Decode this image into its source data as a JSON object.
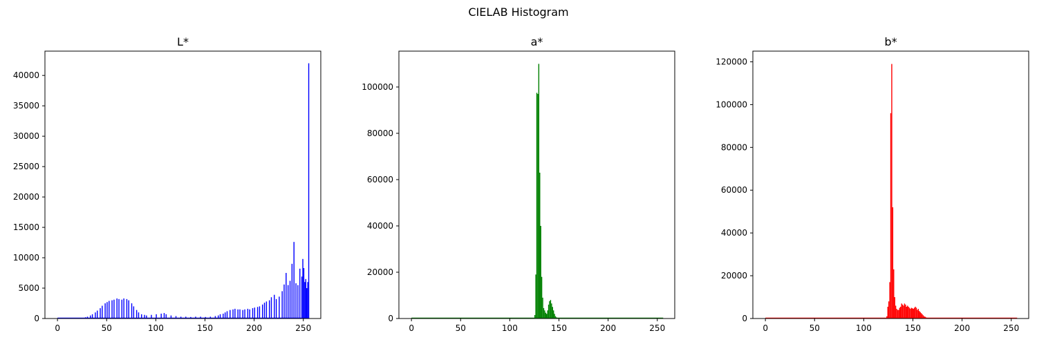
{
  "figure": {
    "title": "CIELAB Histogram"
  },
  "chart_data": [
    {
      "type": "bar",
      "title": "L*",
      "xlabel": "",
      "ylabel": "",
      "color": "#0000ff",
      "xlim": [
        -12.75,
        267.75
      ],
      "ylim": [
        0,
        44000
      ],
      "xticks": [
        0,
        50,
        100,
        150,
        200,
        250
      ],
      "yticks": [
        0,
        5000,
        10000,
        15000,
        20000,
        25000,
        30000,
        35000,
        40000
      ],
      "grid": false,
      "bins": [
        [
          0,
          0
        ],
        [
          25,
          100
        ],
        [
          28,
          200
        ],
        [
          30,
          300
        ],
        [
          33,
          500
        ],
        [
          35,
          700
        ],
        [
          38,
          1000
        ],
        [
          40,
          1300
        ],
        [
          43,
          1700
        ],
        [
          45,
          2100
        ],
        [
          48,
          2500
        ],
        [
          50,
          2700
        ],
        [
          52,
          2900
        ],
        [
          55,
          3000
        ],
        [
          57,
          3100
        ],
        [
          60,
          3300
        ],
        [
          62,
          3200
        ],
        [
          65,
          3100
        ],
        [
          67,
          3300
        ],
        [
          70,
          3200
        ],
        [
          72,
          3000
        ],
        [
          75,
          2500
        ],
        [
          77,
          2000
        ],
        [
          80,
          1400
        ],
        [
          82,
          1000
        ],
        [
          85,
          700
        ],
        [
          88,
          600
        ],
        [
          90,
          500
        ],
        [
          95,
          600
        ],
        [
          100,
          700
        ],
        [
          105,
          800
        ],
        [
          108,
          900
        ],
        [
          110,
          700
        ],
        [
          115,
          500
        ],
        [
          120,
          400
        ],
        [
          125,
          300
        ],
        [
          130,
          300
        ],
        [
          135,
          250
        ],
        [
          140,
          300
        ],
        [
          145,
          300
        ],
        [
          150,
          250
        ],
        [
          155,
          300
        ],
        [
          160,
          400
        ],
        [
          163,
          500
        ],
        [
          165,
          700
        ],
        [
          168,
          800
        ],
        [
          170,
          1000
        ],
        [
          172,
          1200
        ],
        [
          175,
          1400
        ],
        [
          178,
          1500
        ],
        [
          180,
          1600
        ],
        [
          183,
          1500
        ],
        [
          185,
          1500
        ],
        [
          188,
          1400
        ],
        [
          190,
          1500
        ],
        [
          193,
          1600
        ],
        [
          195,
          1500
        ],
        [
          198,
          1700
        ],
        [
          200,
          1800
        ],
        [
          203,
          1900
        ],
        [
          205,
          2000
        ],
        [
          208,
          2300
        ],
        [
          210,
          2600
        ],
        [
          212,
          2800
        ],
        [
          215,
          3000
        ],
        [
          217,
          3500
        ],
        [
          220,
          3900
        ],
        [
          222,
          3200
        ],
        [
          225,
          3600
        ],
        [
          228,
          4500
        ],
        [
          230,
          5600
        ],
        [
          232,
          7500
        ],
        [
          234,
          5500
        ],
        [
          236,
          6200
        ],
        [
          238,
          9000
        ],
        [
          240,
          12600
        ],
        [
          242,
          5800
        ],
        [
          244,
          5500
        ],
        [
          246,
          8200
        ],
        [
          248,
          6900
        ],
        [
          249,
          9800
        ],
        [
          250,
          8300
        ],
        [
          251,
          6000
        ],
        [
          252,
          6500
        ],
        [
          253,
          5000
        ],
        [
          254,
          6000
        ],
        [
          255,
          42000
        ]
      ]
    },
    {
      "type": "bar",
      "title": "a*",
      "xlabel": "",
      "ylabel": "",
      "color": "#008000",
      "xlim": [
        -12.75,
        267.75
      ],
      "ylim": [
        0,
        115500
      ],
      "xticks": [
        0,
        50,
        100,
        150,
        200,
        250
      ],
      "yticks": [
        0,
        20000,
        40000,
        60000,
        80000,
        100000
      ],
      "grid": false,
      "bins": [
        [
          124,
          300
        ],
        [
          125,
          1500
        ],
        [
          126,
          19000
        ],
        [
          127,
          97500
        ],
        [
          128,
          97000
        ],
        [
          129,
          110000
        ],
        [
          130,
          63000
        ],
        [
          131,
          40000
        ],
        [
          132,
          18000
        ],
        [
          133,
          9000
        ],
        [
          134,
          4500
        ],
        [
          135,
          3500
        ],
        [
          136,
          2500
        ],
        [
          137,
          2000
        ],
        [
          138,
          3500
        ],
        [
          139,
          6000
        ],
        [
          140,
          7500
        ],
        [
          141,
          8000
        ],
        [
          142,
          6500
        ],
        [
          143,
          5000
        ],
        [
          144,
          3500
        ],
        [
          145,
          2000
        ],
        [
          146,
          1000
        ],
        [
          147,
          500
        ],
        [
          148,
          200
        ]
      ]
    },
    {
      "type": "bar",
      "title": "b*",
      "xlabel": "",
      "ylabel": "",
      "color": "#ff0000",
      "xlim": [
        -12.75,
        267.75
      ],
      "ylim": [
        0,
        125000
      ],
      "xticks": [
        0,
        50,
        100,
        150,
        200,
        250
      ],
      "yticks": [
        0,
        20000,
        40000,
        60000,
        80000,
        100000,
        120000
      ],
      "grid": false,
      "bins": [
        [
          122,
          300
        ],
        [
          123,
          1000
        ],
        [
          124,
          5500
        ],
        [
          125,
          8000
        ],
        [
          126,
          17000
        ],
        [
          127,
          96000
        ],
        [
          128,
          119000
        ],
        [
          129,
          52000
        ],
        [
          130,
          23000
        ],
        [
          131,
          10000
        ],
        [
          132,
          6000
        ],
        [
          133,
          4500
        ],
        [
          134,
          4000
        ],
        [
          135,
          4000
        ],
        [
          136,
          5000
        ],
        [
          137,
          5500
        ],
        [
          138,
          7000
        ],
        [
          139,
          6500
        ],
        [
          140,
          6000
        ],
        [
          141,
          7000
        ],
        [
          142,
          6500
        ],
        [
          143,
          5500
        ],
        [
          144,
          6000
        ],
        [
          145,
          5500
        ],
        [
          146,
          5000
        ],
        [
          147,
          4500
        ],
        [
          148,
          5000
        ],
        [
          149,
          4800
        ],
        [
          150,
          4500
        ],
        [
          151,
          5000
        ],
        [
          152,
          5500
        ],
        [
          153,
          5000
        ],
        [
          154,
          4000
        ],
        [
          155,
          4500
        ],
        [
          156,
          3500
        ],
        [
          157,
          3000
        ],
        [
          158,
          2500
        ],
        [
          159,
          2000
        ],
        [
          160,
          1500
        ],
        [
          161,
          1000
        ],
        [
          162,
          800
        ],
        [
          163,
          500
        ],
        [
          164,
          300
        ],
        [
          165,
          100
        ]
      ]
    }
  ]
}
